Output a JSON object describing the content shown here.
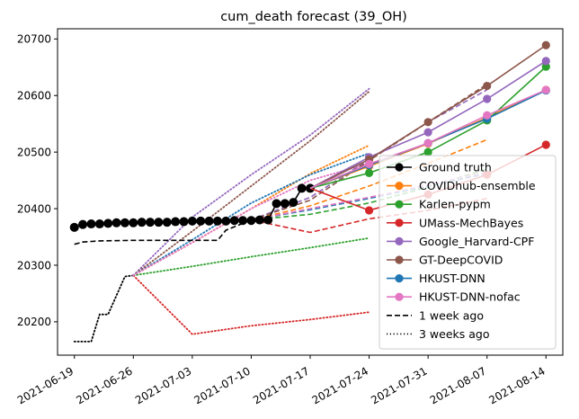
{
  "chart_data": {
    "type": "line",
    "title": "cum_death forecast (39_OH)",
    "xlabel": "",
    "ylabel": "",
    "x_axis": {
      "type": "date",
      "range": [
        "2021-06-17",
        "2021-08-16"
      ],
      "ticks": [
        "2021-06-19",
        "2021-06-26",
        "2021-07-03",
        "2021-07-10",
        "2021-07-17",
        "2021-07-24",
        "2021-07-31",
        "2021-08-07",
        "2021-08-14"
      ]
    },
    "y_axis": {
      "range": [
        20141,
        20718
      ],
      "ticks": [
        20200,
        20300,
        20400,
        20500,
        20600,
        20700
      ]
    },
    "grid": false,
    "legend_position": "lower-right",
    "colors": {
      "ground_truth": "#000000",
      "COVIDhub-ensemble": "#ff7f0e",
      "Karlen-pypm": "#2ca02c",
      "UMass-MechBayes": "#d62728",
      "Google_Harvard-CPF": "#9467bd",
      "GT-DeepCOVID": "#8c564b",
      "HKUST-DNN": "#1f77b4",
      "HKUST-DNN-nofac": "#e377c2"
    },
    "legend": [
      {
        "label": "Ground truth",
        "color": "#000000",
        "style": "solid",
        "marker": true
      },
      {
        "label": "COVIDhub-ensemble",
        "color": "#ff7f0e",
        "style": "solid",
        "marker": true
      },
      {
        "label": "Karlen-pypm",
        "color": "#2ca02c",
        "style": "solid",
        "marker": true
      },
      {
        "label": "UMass-MechBayes",
        "color": "#d62728",
        "style": "solid",
        "marker": true
      },
      {
        "label": "Google_Harvard-CPF",
        "color": "#9467bd",
        "style": "solid",
        "marker": true
      },
      {
        "label": "GT-DeepCOVID",
        "color": "#8c564b",
        "style": "solid",
        "marker": true
      },
      {
        "label": "HKUST-DNN",
        "color": "#1f77b4",
        "style": "solid",
        "marker": true
      },
      {
        "label": "HKUST-DNN-nofac",
        "color": "#e377c2",
        "style": "solid",
        "marker": true
      },
      {
        "label": "1 week ago",
        "color": "#000000",
        "style": "dashed",
        "marker": false
      },
      {
        "label": "3 weeks ago",
        "color": "#000000",
        "style": "dotted",
        "marker": false
      }
    ],
    "ground_truth": {
      "x": [
        "2021-06-19",
        "2021-06-20",
        "2021-06-21",
        "2021-06-22",
        "2021-06-23",
        "2021-06-24",
        "2021-06-25",
        "2021-06-26",
        "2021-06-27",
        "2021-06-28",
        "2021-06-29",
        "2021-06-30",
        "2021-07-01",
        "2021-07-02",
        "2021-07-03",
        "2021-07-04",
        "2021-07-05",
        "2021-07-06",
        "2021-07-07",
        "2021-07-08",
        "2021-07-09",
        "2021-07-10",
        "2021-07-11",
        "2021-07-12",
        "2021-07-13",
        "2021-07-14",
        "2021-07-15",
        "2021-07-16",
        "2021-07-17"
      ],
      "y": [
        20367,
        20372,
        20373,
        20373,
        20374,
        20375,
        20375,
        20375,
        20376,
        20376,
        20376,
        20376,
        20377,
        20377,
        20378,
        20378,
        20378,
        20378,
        20378,
        20379,
        20379,
        20379,
        20380,
        20380,
        20409,
        20409,
        20411,
        20436,
        20436
      ]
    },
    "series": [
      {
        "name": "COVIDhub-ensemble",
        "color": "#ff7f0e",
        "style": "solid",
        "x": [
          "2021-07-17",
          "2021-07-24",
          "2021-07-31",
          "2021-08-07",
          "2021-08-14"
        ],
        "y": [
          20436,
          20475,
          20515,
          20561,
          20610
        ]
      },
      {
        "name": "Karlen-pypm",
        "color": "#2ca02c",
        "style": "solid",
        "x": [
          "2021-07-17",
          "2021-07-24",
          "2021-07-31",
          "2021-08-07",
          "2021-08-14"
        ],
        "y": [
          20436,
          20463,
          20500,
          20556,
          20651
        ]
      },
      {
        "name": "UMass-MechBayes",
        "color": "#d62728",
        "style": "solid",
        "x": [
          "2021-07-17",
          "2021-07-24",
          "2021-07-31",
          "2021-08-07",
          "2021-08-14"
        ],
        "y": [
          20436,
          20397,
          20425,
          20460,
          20513
        ]
      },
      {
        "name": "Google_Harvard-CPF",
        "color": "#9467bd",
        "style": "solid",
        "x": [
          "2021-07-17",
          "2021-07-24",
          "2021-07-31",
          "2021-08-07",
          "2021-08-14"
        ],
        "y": [
          20436,
          20491,
          20535,
          20594,
          20661
        ]
      },
      {
        "name": "GT-DeepCOVID",
        "color": "#8c564b",
        "style": "solid",
        "x": [
          "2021-07-17",
          "2021-07-24",
          "2021-07-31",
          "2021-08-07",
          "2021-08-14"
        ],
        "y": [
          20436,
          20487,
          20553,
          20617,
          20689
        ]
      },
      {
        "name": "HKUST-DNN",
        "color": "#1f77b4",
        "style": "solid",
        "x": [
          "2021-07-17",
          "2021-07-24",
          "2021-07-31",
          "2021-08-07",
          "2021-08-14"
        ],
        "y": [
          20436,
          20477,
          20516,
          20559,
          20609
        ]
      },
      {
        "name": "HKUST-DNN-nofac",
        "color": "#e377c2",
        "style": "solid",
        "x": [
          "2021-07-17",
          "2021-07-24",
          "2021-07-31",
          "2021-08-07",
          "2021-08-14"
        ],
        "y": [
          20436,
          20479,
          20516,
          20565,
          20610
        ]
      },
      {
        "name": "1 week ago ground truth",
        "color": "#000000",
        "style": "dashed",
        "x": [
          "2021-06-19",
          "2021-06-20",
          "2021-06-22",
          "2021-06-26",
          "2021-07-01",
          "2021-07-04",
          "2021-07-06",
          "2021-07-07",
          "2021-07-10"
        ],
        "y": [
          20337,
          20341,
          20343,
          20344,
          20344,
          20344,
          20344,
          20362,
          20380
        ]
      },
      {
        "name": "1 week ago COVIDhub-ensemble",
        "color": "#ff7f0e",
        "style": "dashed",
        "x": [
          "2021-07-10",
          "2021-07-17",
          "2021-07-24",
          "2021-07-31",
          "2021-08-07"
        ],
        "y": [
          20380,
          20405,
          20440,
          20480,
          20522
        ]
      },
      {
        "name": "1 week ago Karlen-pypm",
        "color": "#2ca02c",
        "style": "dashed",
        "x": [
          "2021-07-10",
          "2021-07-17",
          "2021-07-24",
          "2021-07-31",
          "2021-08-07"
        ],
        "y": [
          20380,
          20390,
          20410,
          20438,
          20470
        ]
      },
      {
        "name": "1 week ago UMass-MechBayes",
        "color": "#d62728",
        "style": "dashed",
        "x": [
          "2021-07-10",
          "2021-07-17",
          "2021-07-24",
          "2021-07-31",
          "2021-08-07"
        ],
        "y": [
          20380,
          20358,
          20382,
          20397,
          20418
        ]
      },
      {
        "name": "1 week ago Google_Harvard-CPF",
        "color": "#9467bd",
        "style": "dashed",
        "x": [
          "2021-07-10",
          "2021-07-17",
          "2021-07-24",
          "2021-07-31",
          "2021-08-07"
        ],
        "y": [
          20380,
          20420,
          20487,
          20553,
          20610
        ]
      },
      {
        "name": "1 week ago GT-DeepCOVID",
        "color": "#8c564b",
        "style": "dashed",
        "x": [
          "2021-07-10",
          "2021-07-17",
          "2021-07-24",
          "2021-07-31",
          "2021-08-07"
        ],
        "y": [
          20380,
          20415,
          20485,
          20553,
          20620
        ]
      },
      {
        "name": "1 week ago HKUST-DNN",
        "color": "#1f77b4",
        "style": "dashed",
        "x": [
          "2021-07-10",
          "2021-07-17",
          "2021-07-24",
          "2021-07-31",
          "2021-08-07"
        ],
        "y": [
          20380,
          20398,
          20418,
          20440,
          20462
        ]
      },
      {
        "name": "1 week ago HKUST-DNN-nofac",
        "color": "#e377c2",
        "style": "dashed",
        "x": [
          "2021-07-10",
          "2021-07-17",
          "2021-07-24",
          "2021-07-31",
          "2021-08-07"
        ],
        "y": [
          20380,
          20400,
          20420,
          20442,
          20465
        ]
      },
      {
        "name": "3 weeks ago ground truth",
        "color": "#000000",
        "style": "dotted",
        "x": [
          "2021-06-19",
          "2021-06-21",
          "2021-06-22",
          "2021-06-23",
          "2021-06-25",
          "2021-06-26"
        ],
        "y": [
          20165,
          20165,
          20213,
          20213,
          20280,
          20282
        ]
      },
      {
        "name": "3 weeks ago COVIDhub-ensemble",
        "color": "#ff7f0e",
        "style": "dotted",
        "x": [
          "2021-06-26",
          "2021-07-03",
          "2021-07-10",
          "2021-07-17",
          "2021-07-24"
        ],
        "y": [
          20282,
          20340,
          20400,
          20462,
          20512
        ]
      },
      {
        "name": "3 weeks ago Karlen-pypm",
        "color": "#2ca02c",
        "style": "dotted",
        "x": [
          "2021-06-26",
          "2021-07-03",
          "2021-07-10",
          "2021-07-17",
          "2021-07-24"
        ],
        "y": [
          20282,
          20298,
          20315,
          20331,
          20348
        ]
      },
      {
        "name": "3 weeks ago UMass-MechBayes",
        "color": "#d62728",
        "style": "dotted",
        "x": [
          "2021-06-26",
          "2021-07-03",
          "2021-07-10",
          "2021-07-17",
          "2021-07-24"
        ],
        "y": [
          20282,
          20178,
          20193,
          20204,
          20217
        ]
      },
      {
        "name": "3 weeks ago Google_Harvard-CPF",
        "color": "#9467bd",
        "style": "dotted",
        "x": [
          "2021-06-26",
          "2021-07-03",
          "2021-07-10",
          "2021-07-17",
          "2021-07-24"
        ],
        "y": [
          20282,
          20385,
          20460,
          20530,
          20612
        ]
      },
      {
        "name": "3 weeks ago GT-DeepCOVID",
        "color": "#8c564b",
        "style": "dotted",
        "x": [
          "2021-06-26",
          "2021-07-03",
          "2021-07-10",
          "2021-07-17",
          "2021-07-24"
        ],
        "y": [
          20282,
          20360,
          20440,
          20520,
          20607
        ]
      },
      {
        "name": "3 weeks ago HKUST-DNN",
        "color": "#1f77b4",
        "style": "dotted",
        "x": [
          "2021-06-26",
          "2021-07-03",
          "2021-07-10",
          "2021-07-17",
          "2021-07-24"
        ],
        "y": [
          20282,
          20345,
          20410,
          20460,
          20498
        ]
      },
      {
        "name": "3 weeks ago HKUST-DNN-nofac",
        "color": "#e377c2",
        "style": "dotted",
        "x": [
          "2021-06-26",
          "2021-07-03",
          "2021-07-10",
          "2021-07-17",
          "2021-07-24"
        ],
        "y": [
          20282,
          20340,
          20400,
          20450,
          20480
        ]
      }
    ]
  }
}
